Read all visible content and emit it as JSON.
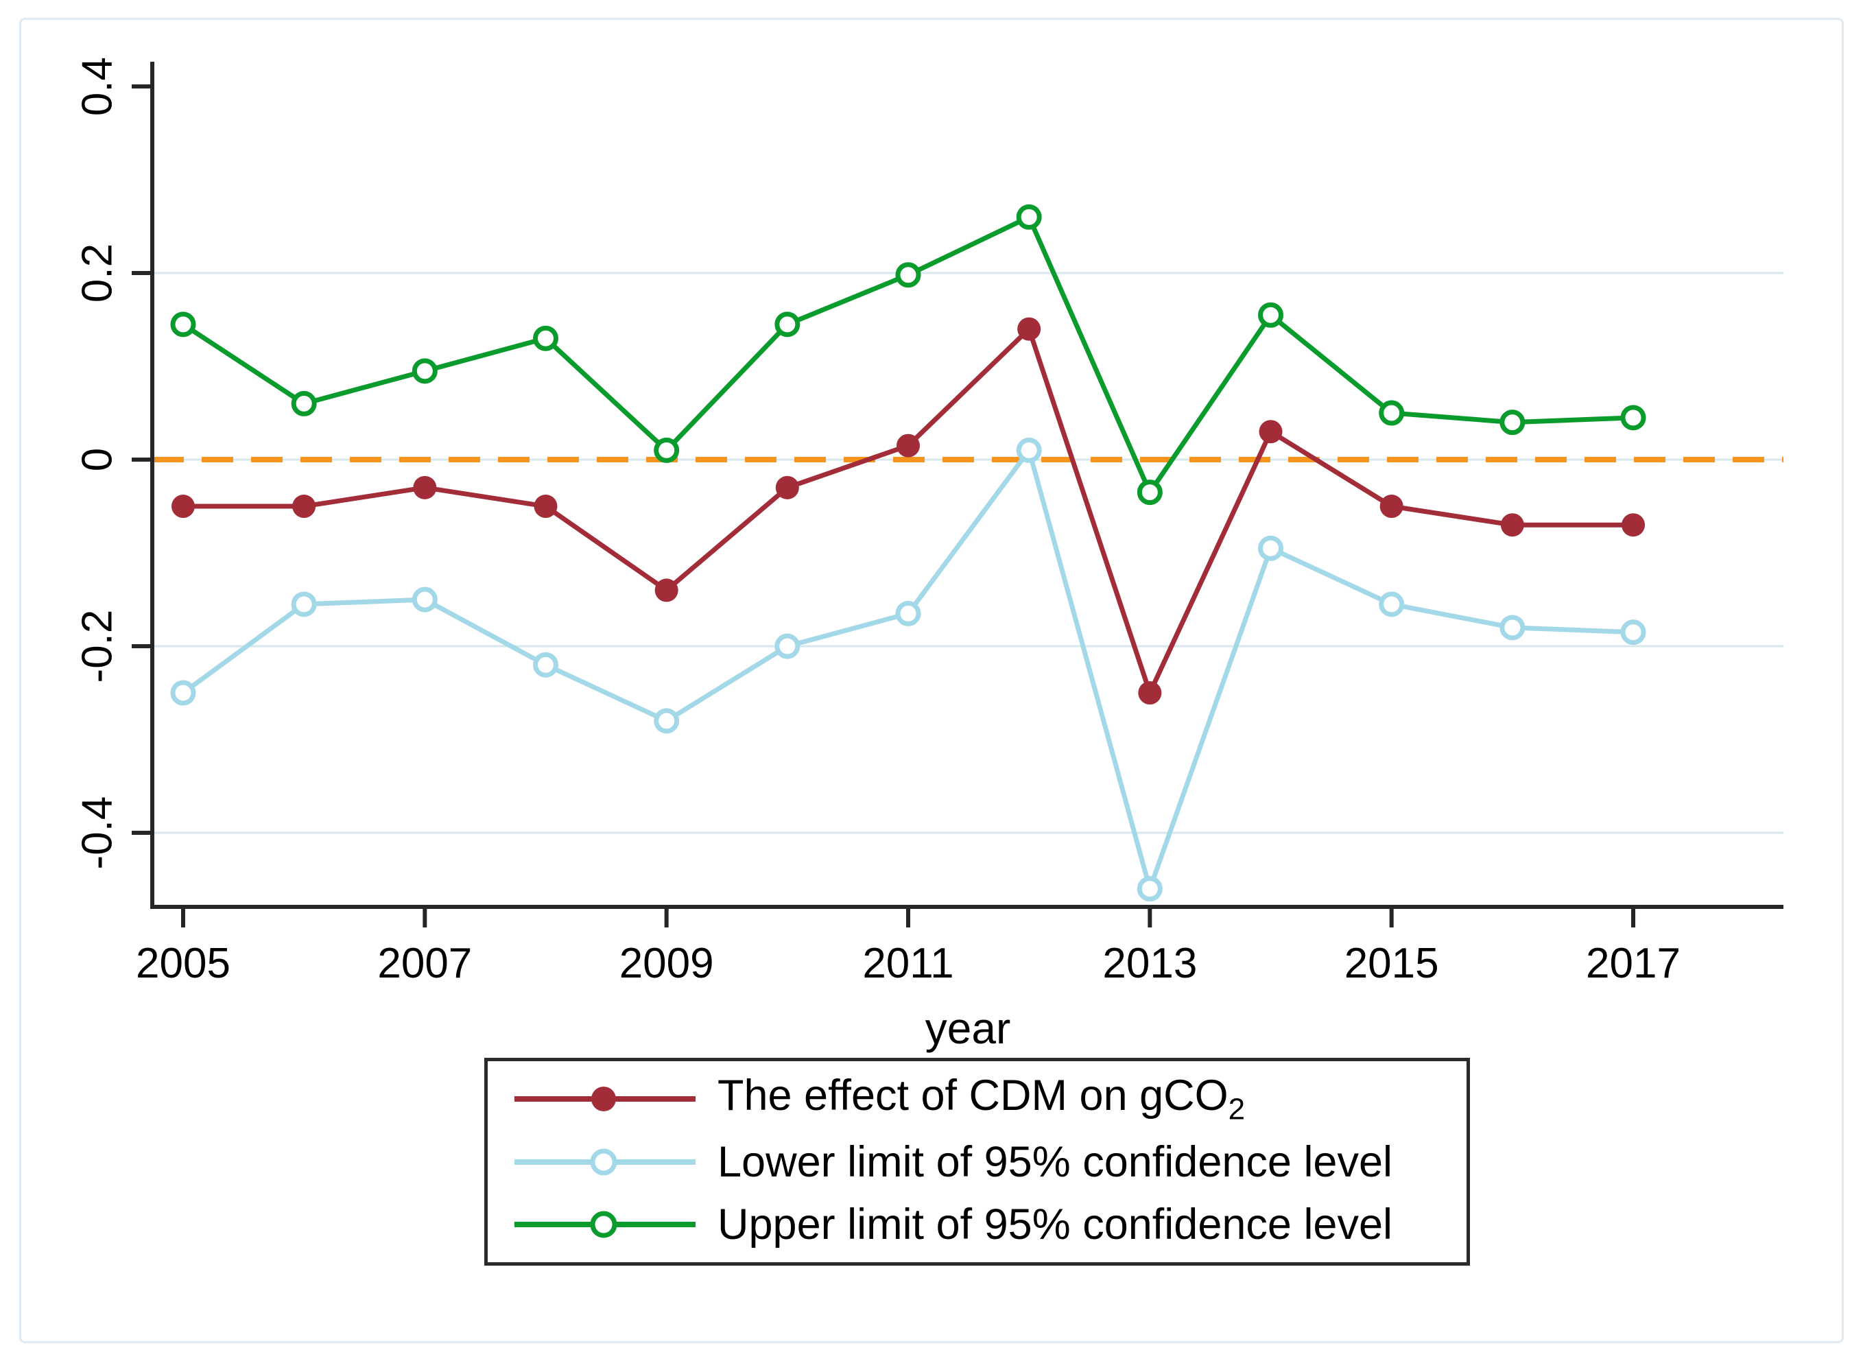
{
  "figure": {
    "background": "#ffffff",
    "border_color": "#e1eaf0"
  },
  "chart_data": {
    "type": "line",
    "title": "",
    "xlabel": "year",
    "ylabel": "",
    "x": [
      2005,
      2006,
      2007,
      2008,
      2009,
      2010,
      2011,
      2012,
      2013,
      2014,
      2015,
      2016,
      2017
    ],
    "series": [
      {
        "name": "The effect of CDM on gCO₂",
        "label_main": "The effect of CDM on gCO",
        "label_sub": "2",
        "color": "#A32C39",
        "marker": "filled-circle",
        "values": [
          -0.05,
          -0.05,
          -0.03,
          -0.05,
          -0.14,
          -0.03,
          0.015,
          0.14,
          -0.25,
          0.03,
          -0.05,
          -0.07,
          -0.07
        ]
      },
      {
        "name": "Lower limit of 95% confidence level",
        "label_main": "Lower limit of 95% confidence level",
        "label_sub": "",
        "color": "#A3D8E8",
        "marker": "open-circle",
        "values": [
          -0.25,
          -0.155,
          -0.15,
          -0.22,
          -0.28,
          -0.2,
          -0.165,
          0.01,
          -0.46,
          -0.095,
          -0.155,
          -0.18,
          -0.185
        ]
      },
      {
        "name": "Upper limit of 95% confidence level",
        "label_main": "Upper limit of 95% confidence level",
        "label_sub": "",
        "color": "#0A9B2D",
        "marker": "open-circle",
        "values": [
          0.145,
          0.06,
          0.095,
          0.13,
          0.01,
          0.145,
          0.198,
          0.26,
          -0.035,
          0.155,
          0.05,
          0.04,
          0.045
        ]
      }
    ],
    "xlim": [
      2004.7446,
      2018.243
    ],
    "ylim": [
      -0.4794,
      0.4265
    ],
    "x_ticks": [
      2005,
      2007,
      2009,
      2011,
      2013,
      2015,
      2017
    ],
    "x_tick_labels": [
      "2005",
      "2007",
      "2009",
      "2011",
      "2013",
      "2015",
      "2017"
    ],
    "y_ticks": [
      0.4,
      0.2,
      0,
      -0.2,
      -0.4
    ],
    "y_tick_labels": [
      "0.4",
      "0.2",
      "0",
      "-0.2",
      "-0.4"
    ],
    "grid_y_values": [
      0.2,
      0,
      -0.2,
      -0.4
    ],
    "grid_on": true,
    "grid_color": "#d9e7ee",
    "axis_color": "#262626",
    "tick_label_color": "#000000",
    "zero_line": {
      "value": 0,
      "color": "#F7941D",
      "style": "dashed"
    },
    "legend_position": "bottom-center",
    "legend_border_color": "#2b2b2b"
  }
}
